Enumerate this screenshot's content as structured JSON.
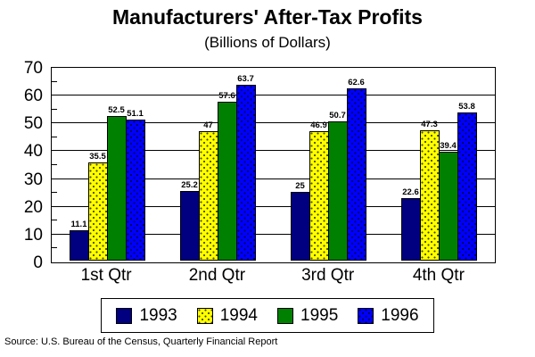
{
  "title": "Manufacturers' After-Tax Profits",
  "subtitle": "(Billions of Dollars)",
  "source": "Source: U.S. Bureau of the Census, Quarterly Financial Report",
  "chart_data": {
    "type": "bar",
    "title": "Manufacturers' After-Tax Profits",
    "subtitle": "(Billions of Dollars)",
    "categories": [
      "1st Qtr",
      "2nd Qtr",
      "3rd Qtr",
      "4th Qtr"
    ],
    "series": [
      {
        "name": "1993",
        "color": "#000080",
        "pattern": "solid",
        "values": [
          11.1,
          25.2,
          25,
          22.6
        ]
      },
      {
        "name": "1994",
        "color": "#ffff00",
        "pattern": "dots",
        "values": [
          35.5,
          47,
          46.9,
          47.3
        ]
      },
      {
        "name": "1995",
        "color": "#008000",
        "pattern": "solid",
        "values": [
          52.5,
          57.6,
          50.7,
          39.4
        ]
      },
      {
        "name": "1996",
        "color": "#0000ff",
        "pattern": "dots",
        "values": [
          51.1,
          63.7,
          62.6,
          53.8
        ]
      }
    ],
    "xlabel": "",
    "ylabel": "",
    "ylim": [
      0,
      70
    ],
    "y_tick_labels": [
      0,
      10,
      20,
      30,
      40,
      50,
      60,
      70
    ],
    "ytick_step": 10,
    "minor_tick_step": 5,
    "grid": "horizontal",
    "legend_position": "bottom",
    "bar_value_labels": true
  }
}
